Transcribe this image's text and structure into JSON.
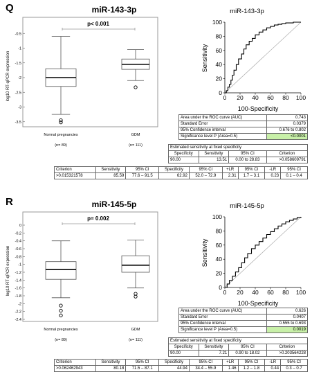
{
  "panels": [
    {
      "letter": "Q",
      "title": "miR-143-3p",
      "boxplot": {
        "ylabel": "log10 RT-qPCR expression",
        "pvalue": "p< 0.001",
        "yticks": [
          "-1",
          "-1.5",
          "-2",
          "-2.5",
          "-3",
          "-3.5"
        ],
        "yticks_top": "-0.5",
        "groups": [
          {
            "label": "Normal pregnancies",
            "n": "(n= 89)"
          },
          {
            "label": "GDM",
            "n": "(n= 111)"
          }
        ]
      },
      "roc": {
        "title": "miR-143-3p",
        "ylabel": "Sensitivity",
        "xlabel": "100-Specificity",
        "ticks": [
          "0",
          "20",
          "40",
          "60",
          "80",
          "100"
        ]
      },
      "auc_table": [
        [
          "Area under the ROC curve (AUC)",
          "0.743"
        ],
        [
          "Standard Error",
          "0.0379"
        ],
        [
          "95% Confidence interval",
          "0.676 to 0.802"
        ],
        [
          "Significance level P (Area=0.5)",
          "<0.0001"
        ]
      ],
      "fixed_title": "Estimated sensitivity at fixed specificity",
      "fixed_header": [
        "Specificity",
        "Sensitivity",
        "95% CI",
        "Criterion"
      ],
      "fixed_row": [
        "90.00",
        "13.51",
        "0.00 to 28.83",
        ">0.058609791"
      ],
      "crit_header": [
        "Criterion",
        "Sensitivity",
        "95% CI",
        "Specificity",
        "95% CI",
        "+LR",
        "95% CI",
        "-LR",
        "95% CI"
      ],
      "crit_row": [
        ">0.015321578",
        "85.59",
        "77.6 – 91.5",
        "62.92",
        "52.0 – 72.9",
        "2.31",
        "1.7 – 3.1",
        "0.23",
        "0.1 – 0.4"
      ]
    },
    {
      "letter": "R",
      "title": "miR-145-5p",
      "boxplot": {
        "ylabel": "log10 RT-qPCR expression",
        "pvalue": "p= 0.002",
        "yticks": [
          "0",
          "-0.2",
          "-0.4",
          "-0.6",
          "-0.8",
          "-1",
          "-1.2",
          "-1.4",
          "-1.6",
          "-1.8",
          "-2",
          "-2.2",
          "-2.4"
        ],
        "yticks_top": "",
        "groups": [
          {
            "label": "Normal pregnancies",
            "n": "(n= 89)"
          },
          {
            "label": "GDM",
            "n": "(n= 111)"
          }
        ]
      },
      "roc": {
        "title": "miR-145-5p",
        "ylabel": "Sensitivity",
        "xlabel": "100-Specificity",
        "ticks": [
          "0",
          "20",
          "40",
          "60",
          "80",
          "100"
        ]
      },
      "auc_table": [
        [
          "Area under the ROC curve (AUC)",
          "0.626"
        ],
        [
          "Standard Error",
          "0.0407"
        ],
        [
          "95% Confidence interval",
          "0.555 to 0.693"
        ],
        [
          "Significance level P (Area=0.5)",
          "0.0019"
        ]
      ],
      "fixed_title": "Estimated sensitivity at fixed specificity",
      "fixed_header": [
        "Specificity",
        "Sensitivity",
        "95% CI",
        "Criterion"
      ],
      "fixed_row": [
        "90.00",
        "7.21",
        "0.90 to 18.02",
        ">0.203564228"
      ],
      "crit_header": [
        "Criterion",
        "Sensitivity",
        "95% CI",
        "Specificity",
        "95% CI",
        "+LR",
        "95% CI",
        "-LR",
        "95% CI"
      ],
      "crit_row": [
        ">0.062462943",
        "80.18",
        "71.5 – 87.1",
        "44.94",
        "34.4 – 55.9",
        "1.46",
        "1.2 – 1.8",
        "0.44",
        "0.3 – 0.7"
      ]
    }
  ],
  "chart_data": [
    {
      "type": "box",
      "title": "miR-143-3p",
      "ylabel": "log10 RT-qPCR expression",
      "categories": [
        "Normal pregnancies",
        "GDM"
      ],
      "ylim": [
        -3.6,
        -0.4
      ],
      "boxes": [
        {
          "name": "Normal pregnancies",
          "min": -3.25,
          "q1": -2.3,
          "median": -2.0,
          "q3": -1.7,
          "max": -0.6,
          "outliers": [
            -3.45,
            -3.52
          ]
        },
        {
          "name": "GDM",
          "min": -2.1,
          "q1": -1.72,
          "median": -1.55,
          "q3": -1.37,
          "max": -1.05,
          "outliers": [
            -2.33
          ]
        }
      ]
    },
    {
      "type": "line",
      "title": "miR-143-3p",
      "xlabel": "100-Specificity",
      "ylabel": "Sensitivity",
      "xlim": [
        0,
        100
      ],
      "ylim": [
        0,
        100
      ],
      "series": [
        {
          "values_x": [
            0,
            2,
            4,
            6,
            8,
            10,
            12,
            15,
            18,
            22,
            25,
            28,
            32,
            36,
            40,
            45,
            50,
            55,
            60,
            65,
            70,
            75,
            80,
            90,
            100
          ],
          "values_y": [
            0,
            3,
            8,
            12,
            18,
            25,
            32,
            40,
            48,
            55,
            62,
            68,
            73,
            77,
            82,
            86,
            89,
            92,
            94,
            96,
            97,
            98,
            99,
            100,
            100
          ]
        }
      ]
    },
    {
      "type": "box",
      "title": "miR-145-5p",
      "ylabel": "log10 RT-qPCR expression",
      "categories": [
        "Normal pregnancies",
        "GDM"
      ],
      "ylim": [
        -2.4,
        0
      ],
      "boxes": [
        {
          "name": "Normal pregnancies",
          "min": -1.85,
          "q1": -1.38,
          "median": -1.13,
          "q3": -0.93,
          "max": -0.4,
          "outliers": [
            -2.05,
            -2.18,
            -2.3
          ]
        },
        {
          "name": "GDM",
          "min": -1.6,
          "q1": -1.2,
          "median": -1.02,
          "q3": -0.78,
          "max": -0.38,
          "outliers": [
            -1.75,
            -1.82
          ]
        }
      ]
    },
    {
      "type": "line",
      "title": "miR-145-5p",
      "xlabel": "100-Specificity",
      "ylabel": "Sensitivity",
      "xlim": [
        0,
        100
      ],
      "ylim": [
        0,
        100
      ],
      "series": [
        {
          "values_x": [
            0,
            3,
            6,
            10,
            14,
            18,
            22,
            26,
            30,
            35,
            40,
            45,
            50,
            55,
            60,
            65,
            70,
            75,
            80,
            85,
            90,
            95,
            100
          ],
          "values_y": [
            0,
            5,
            10,
            16,
            22,
            28,
            35,
            42,
            48,
            55,
            60,
            65,
            70,
            75,
            79,
            83,
            87,
            90,
            93,
            95,
            97,
            99,
            100
          ]
        }
      ]
    }
  ]
}
